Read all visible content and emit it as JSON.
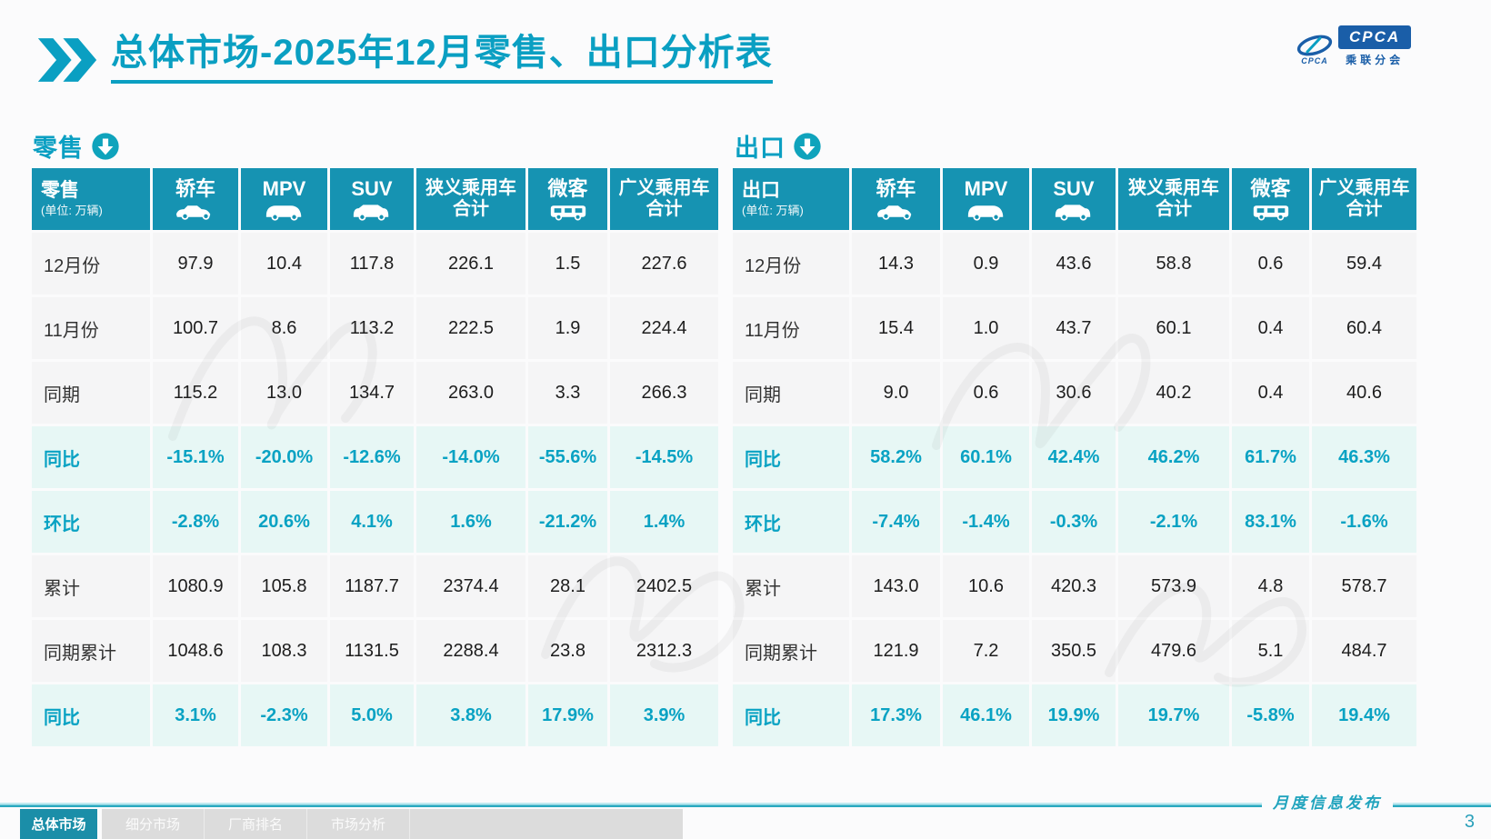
{
  "page": {
    "title": "总体市场-2025年12月零售、出口分析表",
    "footer_note": "月度信息发布",
    "page_number": "3"
  },
  "logo": {
    "mark_text": "CPCA",
    "box_text": "CPCA",
    "cn": "乘联分会"
  },
  "colors": {
    "accent_teal": "#0a9fc2",
    "header_teal": "#1693b2",
    "percent_teal": "#09a2c3",
    "row_bg": "#f5f5f6",
    "percent_bg": "#e7f7f5",
    "active_tab": "#1b8ea8"
  },
  "tables": [
    {
      "section_label": "零售",
      "first_col": {
        "label": "零售",
        "unit": "(单位: 万辆)"
      },
      "columns": [
        {
          "label": "轿车",
          "icon": "sedan-icon"
        },
        {
          "label": "MPV",
          "icon": "mpv-icon"
        },
        {
          "label": "SUV",
          "icon": "suv-icon"
        },
        {
          "label": "狭义乘用车",
          "label2": "合计"
        },
        {
          "label": "微客",
          "icon": "van-icon"
        },
        {
          "label": "广义乘用车",
          "label2": "合计"
        }
      ],
      "rows": [
        {
          "label": "12月份",
          "type": "normal",
          "values": [
            "97.9",
            "10.4",
            "117.8",
            "226.1",
            "1.5",
            "227.6"
          ]
        },
        {
          "label": "11月份",
          "type": "normal",
          "values": [
            "100.7",
            "8.6",
            "113.2",
            "222.5",
            "1.9",
            "224.4"
          ]
        },
        {
          "label": "同期",
          "type": "normal",
          "values": [
            "115.2",
            "13.0",
            "134.7",
            "263.0",
            "3.3",
            "266.3"
          ]
        },
        {
          "label": "同比",
          "type": "percent",
          "values": [
            "-15.1%",
            "-20.0%",
            "-12.6%",
            "-14.0%",
            "-55.6%",
            "-14.5%"
          ]
        },
        {
          "label": "环比",
          "type": "percent",
          "values": [
            "-2.8%",
            "20.6%",
            "4.1%",
            "1.6%",
            "-21.2%",
            "1.4%"
          ]
        },
        {
          "label": "累计",
          "type": "normal",
          "values": [
            "1080.9",
            "105.8",
            "1187.7",
            "2374.4",
            "28.1",
            "2402.5"
          ]
        },
        {
          "label": "同期累计",
          "type": "normal",
          "values": [
            "1048.6",
            "108.3",
            "1131.5",
            "2288.4",
            "23.8",
            "2312.3"
          ]
        },
        {
          "label": "同比",
          "type": "percent",
          "values": [
            "3.1%",
            "-2.3%",
            "5.0%",
            "3.8%",
            "17.9%",
            "3.9%"
          ]
        }
      ]
    },
    {
      "section_label": "出口",
      "first_col": {
        "label": "出口",
        "unit": "(单位: 万辆)"
      },
      "columns": [
        {
          "label": "轿车",
          "icon": "sedan-icon"
        },
        {
          "label": "MPV",
          "icon": "mpv-icon"
        },
        {
          "label": "SUV",
          "icon": "suv-icon"
        },
        {
          "label": "狭义乘用车",
          "label2": "合计"
        },
        {
          "label": "微客",
          "icon": "van-icon"
        },
        {
          "label": "广义乘用车",
          "label2": "合计"
        }
      ],
      "rows": [
        {
          "label": "12月份",
          "type": "normal",
          "values": [
            "14.3",
            "0.9",
            "43.6",
            "58.8",
            "0.6",
            "59.4"
          ]
        },
        {
          "label": "11月份",
          "type": "normal",
          "values": [
            "15.4",
            "1.0",
            "43.7",
            "60.1",
            "0.4",
            "60.4"
          ]
        },
        {
          "label": "同期",
          "type": "normal",
          "values": [
            "9.0",
            "0.6",
            "30.6",
            "40.2",
            "0.4",
            "40.6"
          ]
        },
        {
          "label": "同比",
          "type": "percent",
          "values": [
            "58.2%",
            "60.1%",
            "42.4%",
            "46.2%",
            "61.7%",
            "46.3%"
          ]
        },
        {
          "label": "环比",
          "type": "percent",
          "values": [
            "-7.4%",
            "-1.4%",
            "-0.3%",
            "-2.1%",
            "83.1%",
            "-1.6%"
          ]
        },
        {
          "label": "累计",
          "type": "normal",
          "values": [
            "143.0",
            "10.6",
            "420.3",
            "573.9",
            "4.8",
            "578.7"
          ]
        },
        {
          "label": "同期累计",
          "type": "normal",
          "values": [
            "121.9",
            "7.2",
            "350.5",
            "479.6",
            "5.1",
            "484.7"
          ]
        },
        {
          "label": "同比",
          "type": "percent",
          "values": [
            "17.3%",
            "46.1%",
            "19.9%",
            "19.7%",
            "-5.8%",
            "19.4%"
          ]
        }
      ]
    }
  ],
  "footer": {
    "tabs": [
      {
        "label": "总体市场",
        "active": true
      },
      {
        "label": "细分市场",
        "active": false
      },
      {
        "label": "厂商排名",
        "active": false
      },
      {
        "label": "市场分析",
        "active": false
      }
    ]
  }
}
